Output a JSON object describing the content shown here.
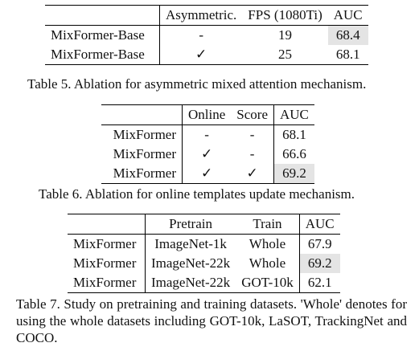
{
  "table5": {
    "headers": [
      "",
      "Asymmetric.",
      "FPS (1080Ti)",
      "AUC"
    ],
    "rows": [
      {
        "method": "MixFormer-Base",
        "asym": "-",
        "fps": "19",
        "auc": "68.4",
        "best": true
      },
      {
        "method": "MixFormer-Base",
        "asym": "✓",
        "fps": "25",
        "auc": "68.1",
        "best": false
      }
    ],
    "caption": "Table 5. Ablation for asymmetric mixed attention mechanism."
  },
  "table6": {
    "headers": [
      "",
      "Online",
      "Score",
      "AUC"
    ],
    "rows": [
      {
        "method": "MixFormer",
        "online": "-",
        "score": "-",
        "auc": "68.1",
        "best": false
      },
      {
        "method": "MixFormer",
        "online": "✓",
        "score": "-",
        "auc": "66.6",
        "best": false
      },
      {
        "method": "MixFormer",
        "online": "✓",
        "score": "✓",
        "auc": "69.2",
        "best": true
      }
    ],
    "caption": "Table 6. Ablation for online templates update mechanism."
  },
  "table7": {
    "headers": [
      "",
      "Pretrain",
      "Train",
      "AUC"
    ],
    "rows": [
      {
        "method": "MixFormer",
        "pretrain": "ImageNet-1k",
        "train": "Whole",
        "auc": "67.9",
        "best": false
      },
      {
        "method": "MixFormer",
        "pretrain": "ImageNet-22k",
        "train": "Whole",
        "auc": "69.2",
        "best": true
      },
      {
        "method": "MixFormer",
        "pretrain": "ImageNet-22k",
        "train": "GOT-10k",
        "auc": "62.1",
        "best": false
      }
    ],
    "caption": "Table 7. Study on pretraining and training datasets. 'Whole' denotes for using the whole datasets including GOT-10k, LaSOT, TrackingNet and COCO."
  }
}
